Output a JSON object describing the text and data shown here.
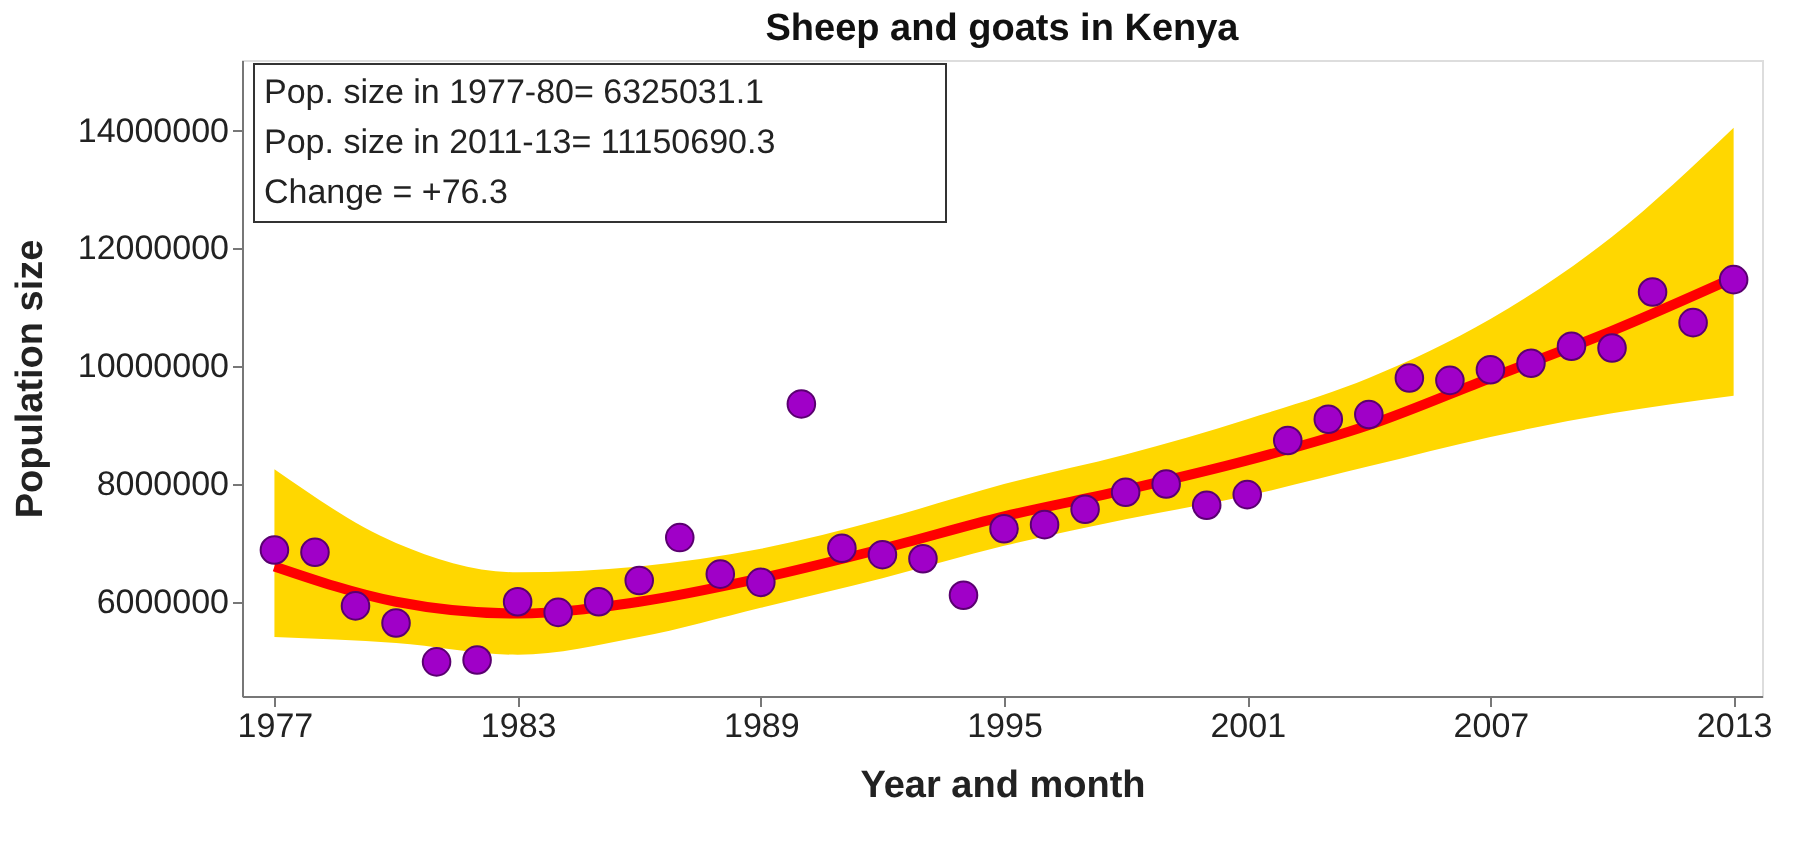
{
  "chart_data": {
    "type": "scatter",
    "title": "Sheep and goats in Kenya",
    "xlabel": "Year and month",
    "ylabel": "Population size",
    "xlim": [
      1976.2,
      2013.7
    ],
    "xticks": [
      1977,
      1983,
      1989,
      1995,
      2001,
      2007,
      2013
    ],
    "ylim": [
      4400000,
      15200000
    ],
    "yticks": [
      6000000,
      8000000,
      10000000,
      12000000,
      14000000
    ],
    "grid": false,
    "annotations": [
      "Pop. size in 1977-80= 6325031.1",
      "Pop. size in 2011-13= 11150690.3",
      "Change           = +76.3"
    ],
    "series": [
      {
        "type": "line",
        "color": "#ff0000",
        "marker": "none",
        "line_style": "solid",
        "x": [
          1977,
          1980,
          1983,
          1986,
          1989,
          1992,
          1995,
          1998,
          2001,
          2004,
          2007,
          2010,
          2013
        ],
        "values": [
          6600000,
          6000000,
          5800000,
          6000000,
          6400000,
          6900000,
          7450000,
          7900000,
          8400000,
          9000000,
          9800000,
          10600000,
          11500000
        ],
        "lower": [
          5400000,
          5300000,
          5100000,
          5400000,
          5900000,
          6400000,
          6950000,
          7400000,
          7800000,
          8300000,
          8800000,
          9200000,
          9500000
        ],
        "upper": [
          8250000,
          7000000,
          6500000,
          6600000,
          6900000,
          7400000,
          8000000,
          8500000,
          9100000,
          9800000,
          10800000,
          12200000,
          14050000
        ]
      },
      {
        "color": "#a000c8",
        "marker": "circle",
        "x": [
          1977,
          1978,
          1979,
          1980,
          1981,
          1982,
          1983,
          1984,
          1985,
          1986,
          1987,
          1988,
          1989,
          1990,
          1991,
          1992,
          1993,
          1994,
          1995,
          1996,
          1997,
          1998,
          1999,
          2000,
          2001,
          2002,
          2003,
          2004,
          2005,
          2006,
          2007,
          2008,
          2009,
          2010,
          2011,
          2012,
          2013
        ],
        "values": [
          6880000,
          6840000,
          5930000,
          5640000,
          4980000,
          5010000,
          6000000,
          5820000,
          6000000,
          6360000,
          7090000,
          6470000,
          6330000,
          9360000,
          6910000,
          6800000,
          6730000,
          6110000,
          7240000,
          7310000,
          7570000,
          7860000,
          8000000,
          7640000,
          7820000,
          8740000,
          9100000,
          9180000,
          9800000,
          9760000,
          9940000,
          10050000,
          10340000,
          10310000,
          11260000,
          10740000,
          11470000
        ]
      }
    ]
  }
}
